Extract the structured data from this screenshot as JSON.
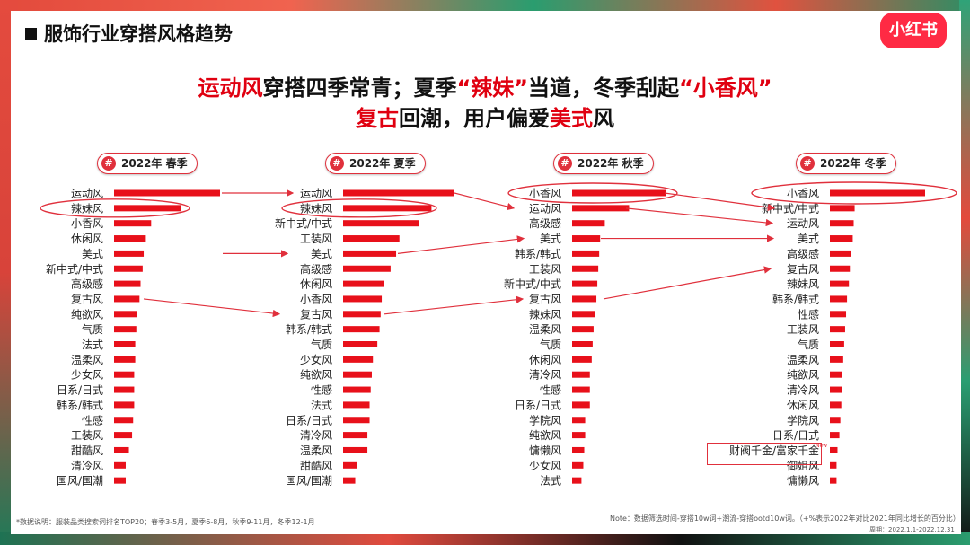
{
  "header": {
    "title": "服饰行业穿搭风格趋势"
  },
  "logo": {
    "text": "小红书"
  },
  "headline": {
    "l1a": "运动风",
    "l1b": "穿搭四季常青；夏季",
    "l1c": "“辣妹”",
    "l1d": "当道，冬季刮起",
    "l1e": "“小香风”",
    "l2a": "复古",
    "l2b": "回潮，用户偏爱",
    "l2c": "美式",
    "l2d": "风"
  },
  "colors": {
    "bar": "#e8101a",
    "accent": "#e0303c",
    "brand": "#ff2a44"
  },
  "chart_data": {
    "type": "bar",
    "panels": [
      {
        "title": "2022年 春季",
        "categories": [
          "运动风",
          "辣妹风",
          "小香风",
          "休闲风",
          "美式",
          "新中式/中式",
          "高级感",
          "复古风",
          "纯欲风",
          "气质",
          "法式",
          "温柔风",
          "少女风",
          "日系/日式",
          "韩系/韩式",
          "性感",
          "工装风",
          "甜酷风",
          "清冷风",
          "国风/国潮"
        ],
        "values": [
          100,
          63,
          35,
          30,
          28,
          27,
          25,
          24,
          22,
          21,
          20,
          20,
          19,
          19,
          19,
          18,
          17,
          14,
          11,
          11
        ]
      },
      {
        "title": "2022年 夏季",
        "categories": [
          "运动风",
          "辣妹风",
          "新中式/中式",
          "工装风",
          "美式",
          "高级感",
          "休闲风",
          "小香风",
          "复古风",
          "韩系/韩式",
          "气质",
          "少女风",
          "纯欲风",
          "性感",
          "法式",
          "日系/日式",
          "清冷风",
          "温柔风",
          "甜酷风",
          "国风/国潮"
        ],
        "values": [
          100,
          80,
          69,
          51,
          48,
          43,
          37,
          35,
          34,
          33,
          31,
          27,
          26,
          25,
          24,
          24,
          22,
          22,
          13,
          11
        ]
      },
      {
        "title": "2022年 秋季",
        "categories": [
          "小香风",
          "运动风",
          "高级感",
          "美式",
          "韩系/韩式",
          "工装风",
          "新中式/中式",
          "复古风",
          "辣妹风",
          "温柔风",
          "气质",
          "休闲风",
          "清冷风",
          "性感",
          "日系/日式",
          "学院风",
          "纯欲风",
          "慵懒风",
          "少女风",
          "法式"
        ],
        "values": [
          100,
          61,
          35,
          30,
          29,
          28,
          27,
          26,
          25,
          23,
          22,
          21,
          19,
          19,
          19,
          14,
          14,
          13,
          12,
          10
        ]
      },
      {
        "title": "2022年 冬季",
        "categories": [
          "小香风",
          "新中式/中式",
          "运动风",
          "美式",
          "高级感",
          "复古风",
          "辣妹风",
          "韩系/韩式",
          "性感",
          "工装风",
          "气质",
          "温柔风",
          "纯欲风",
          "清冷风",
          "休闲风",
          "学院风",
          "日系/日式",
          "财阀千金/富家千金",
          "御姐风",
          "慵懒风"
        ],
        "values": [
          100,
          26,
          25,
          24,
          22,
          21,
          20,
          18,
          17,
          16,
          15,
          14,
          13,
          13,
          12,
          11,
          10,
          8,
          7,
          7
        ],
        "new_label": "New"
      }
    ]
  },
  "footnote": "*数据说明：服装品类搜索词排名TOP20；春季3-5月，夏季6-8月，秋季9-11月，冬季12-1月",
  "note": "Note：数据筛选时间-穿搭10w词+潮流-穿搭ootd10w词。（+%表示2022年对比2021年同比增长的百分比）",
  "period": "周期：2022.1.1-2022.12.31"
}
